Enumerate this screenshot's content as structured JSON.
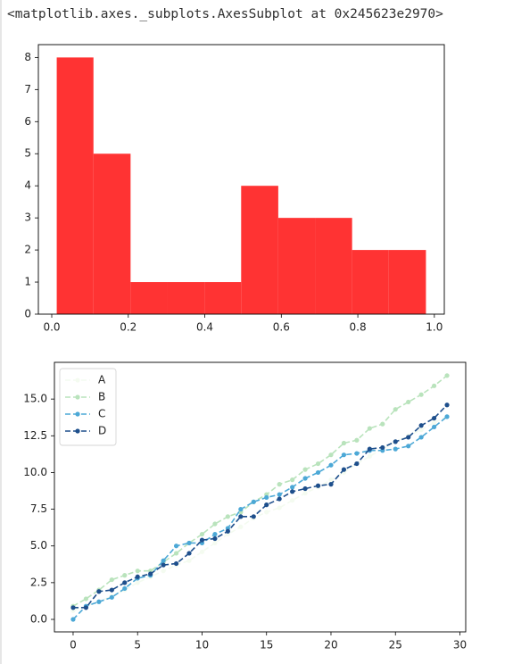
{
  "output_text": "<matplotlib.axes._subplots.AxesSubplot at 0x245623e2970>",
  "chart_data": [
    {
      "type": "bar",
      "bins": [
        {
          "start": 0.013,
          "end": 0.109,
          "count": 8
        },
        {
          "start": 0.109,
          "end": 0.206,
          "count": 5
        },
        {
          "start": 0.206,
          "end": 0.302,
          "count": 1
        },
        {
          "start": 0.302,
          "end": 0.399,
          "count": 1
        },
        {
          "start": 0.399,
          "end": 0.495,
          "count": 1
        },
        {
          "start": 0.495,
          "end": 0.592,
          "count": 4
        },
        {
          "start": 0.592,
          "end": 0.688,
          "count": 3
        },
        {
          "start": 0.688,
          "end": 0.785,
          "count": 3
        },
        {
          "start": 0.785,
          "end": 0.881,
          "count": 2
        },
        {
          "start": 0.881,
          "end": 0.978,
          "count": 2
        }
      ],
      "color": "#ff3333",
      "xlim": [
        -0.035,
        1.026
      ],
      "ylim": [
        0,
        8.4
      ],
      "xticks": [
        "0.0",
        "0.2",
        "0.4",
        "0.6",
        "0.8",
        "1.0"
      ],
      "yticks": [
        "0",
        "1",
        "2",
        "3",
        "4",
        "5",
        "6",
        "7",
        "8"
      ],
      "grid": false
    },
    {
      "type": "line",
      "x": [
        0,
        1,
        2,
        3,
        4,
        5,
        6,
        7,
        8,
        9,
        10,
        11,
        12,
        13,
        14,
        15,
        16,
        17,
        18,
        19,
        20,
        21,
        22,
        23,
        24,
        25,
        26,
        27,
        28,
        29
      ],
      "series": [
        {
          "name": "A",
          "color": "#f4fbf0",
          "values": [
            0.6,
            0.9,
            1.2,
            1.6,
            2.0,
            2.5,
            2.9,
            3.3,
            3.7,
            4.0,
            4.6,
            5.2,
            5.8,
            6.3,
            6.9,
            7.3,
            7.6,
            8.1,
            8.6,
            9.0,
            9.5,
            10.0,
            10.6,
            11.1,
            11.6,
            12.1,
            12.5,
            12.9,
            13.4,
            13.8
          ]
        },
        {
          "name": "B",
          "color": "#b9e3bc",
          "values": [
            0.9,
            1.4,
            2.0,
            2.7,
            3.0,
            3.3,
            3.3,
            3.9,
            4.5,
            5.2,
            5.8,
            6.5,
            7.0,
            7.3,
            8.0,
            8.5,
            9.2,
            9.5,
            10.2,
            10.6,
            11.2,
            12.0,
            12.2,
            13.0,
            13.3,
            14.3,
            14.8,
            15.3,
            15.9,
            16.6
          ]
        },
        {
          "name": "C",
          "color": "#4ca8d6",
          "values": [
            0.0,
            0.9,
            1.2,
            1.5,
            2.1,
            2.8,
            3.0,
            4.0,
            5.0,
            5.2,
            5.2,
            5.8,
            6.2,
            7.5,
            8.0,
            8.3,
            8.5,
            9.0,
            9.6,
            10.0,
            10.5,
            11.2,
            11.3,
            11.5,
            11.5,
            11.6,
            11.8,
            12.4,
            13.1,
            13.8
          ]
        },
        {
          "name": "D",
          "color": "#1e4f8c",
          "values": [
            0.8,
            0.8,
            1.9,
            2.0,
            2.5,
            2.9,
            3.1,
            3.7,
            3.8,
            4.5,
            5.4,
            5.5,
            6.0,
            7.0,
            7.0,
            7.8,
            8.2,
            8.7,
            8.9,
            9.1,
            9.2,
            10.2,
            10.6,
            11.6,
            11.7,
            12.1,
            12.4,
            13.2,
            13.7,
            14.6
          ]
        }
      ],
      "line_style": "dashed",
      "marker": "circle",
      "xlim": [
        -1.45,
        30.45
      ],
      "ylim": [
        -0.85,
        17.5
      ],
      "xticks": [
        "0",
        "5",
        "10",
        "15",
        "20",
        "25",
        "30"
      ],
      "yticks": [
        "0.0",
        "2.5",
        "5.0",
        "7.5",
        "10.0",
        "12.5",
        "15.0"
      ],
      "legend": "top-left",
      "grid": false
    }
  ]
}
